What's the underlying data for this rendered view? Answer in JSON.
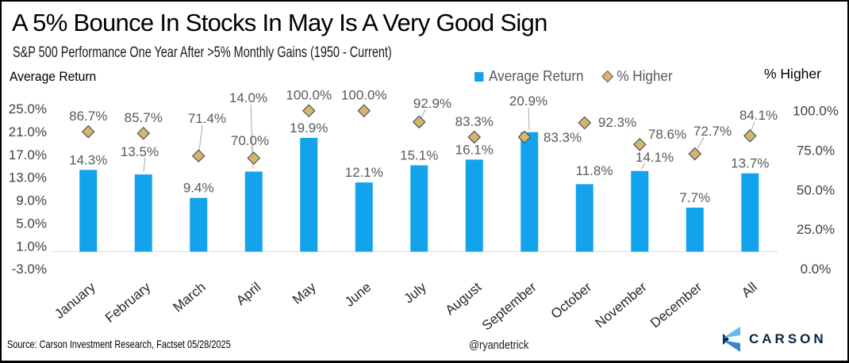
{
  "header": {
    "title": "A 5% Bounce In Stocks In May Is A Very Good Sign",
    "subtitle": "S&P 500 Performance One Year After >5% Monthly Gains (1950 - Current)"
  },
  "axes": {
    "left_title": "Average Return",
    "right_title": "% Higher"
  },
  "legend": {
    "items": [
      {
        "label": "Average Return",
        "swatch": "square",
        "color": "#12A3EC"
      },
      {
        "label": "% Higher",
        "swatch": "diamond",
        "color": "#D9B666"
      }
    ]
  },
  "footer": {
    "source": "Source: Carson Investment Research, Factset 05/28/2025",
    "handle": "@ryandetrick",
    "logo_text": "CARSON"
  },
  "colors": {
    "bar_blue": "#12A3EC",
    "diamond_gold": "#D9B666",
    "diamond_border": "#44546A",
    "label_gray": "#595959",
    "baseline_gray": "#D9D9D9",
    "logo_navy": "#0C2340"
  },
  "chart_data": {
    "type": "bar",
    "subtype": "combo-bar-and-diamond-markers",
    "categories": [
      "January",
      "February",
      "March",
      "April",
      "May",
      "June",
      "July",
      "August",
      "September",
      "October",
      "November",
      "December",
      "All"
    ],
    "series": [
      {
        "name": "Average Return",
        "type": "bar",
        "axis": "left",
        "color": "#12A3EC",
        "values": [
          14.3,
          13.5,
          9.4,
          14.0,
          19.9,
          12.1,
          15.1,
          16.1,
          20.9,
          11.8,
          14.1,
          7.7,
          13.7
        ],
        "labels": [
          "14.3%",
          "13.5%",
          "9.4%",
          "14.0%",
          "19.9%",
          "12.1%",
          "15.1%",
          "16.1%",
          "20.9%",
          "11.8%",
          "14.1%",
          "7.7%",
          "13.7%"
        ]
      },
      {
        "name": "% Higher",
        "type": "diamond-point",
        "axis": "right",
        "color": "#D9B666",
        "values": [
          86.7,
          85.7,
          71.4,
          70.0,
          100.0,
          100.0,
          92.9,
          83.3,
          83.3,
          92.3,
          78.6,
          72.7,
          84.1
        ],
        "labels": [
          "86.7%",
          "85.7%",
          "71.4%",
          "70.0%",
          "100.0%",
          "100.0%",
          "92.9%",
          "83.3%",
          "83.3%",
          "92.3%",
          "78.6%",
          "72.7%",
          "84.1%"
        ]
      }
    ],
    "left_axis": {
      "title": "Average Return",
      "ticks": [
        25,
        21,
        17,
        13,
        9,
        5,
        1,
        -3
      ],
      "tick_labels": [
        "25.0%",
        "21.0%",
        "17.0%",
        "13.0%",
        "9.0%",
        "5.0%",
        "1.0%",
        "-3.0%"
      ],
      "range": [
        -3,
        25
      ]
    },
    "right_axis": {
      "title": "% Higher",
      "ticks": [
        100,
        75,
        50,
        25,
        0
      ],
      "tick_labels": [
        "100.0%",
        "75.0%",
        "50.0%",
        "25.0%",
        "0.0%"
      ],
      "range": [
        0,
        100
      ]
    },
    "grid": "baseline-only",
    "legend_position": "top-right"
  }
}
